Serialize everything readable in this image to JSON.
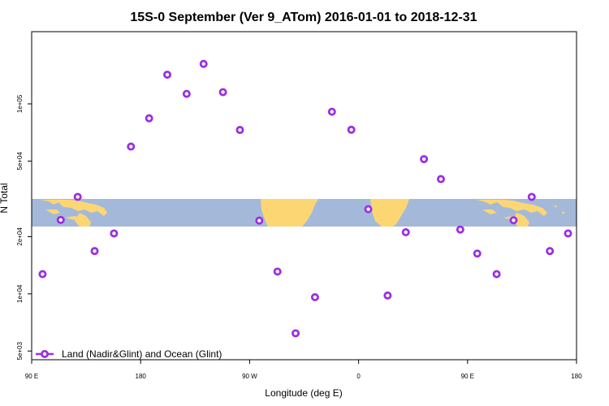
{
  "chart_data": {
    "type": "scatter",
    "title": "15S-0 September (Ver 9_ATom)   2016-01-01 to 2018-12-31",
    "xlabel": "Longitude (deg E)",
    "ylabel": "N Total",
    "x_ticks": [
      {
        "value": 90,
        "label": "90 E"
      },
      {
        "value": 180,
        "label": "180"
      },
      {
        "value": 270,
        "label": "90 W"
      },
      {
        "value": 360,
        "label": "0"
      },
      {
        "value": 450,
        "label": "90 E"
      },
      {
        "value": 540,
        "label": "180"
      }
    ],
    "xlim": [
      90,
      540
    ],
    "y_scale": "log",
    "ylim": [
      4500,
      240000
    ],
    "y_ticks": [
      {
        "value": 5000,
        "label": "5e+03"
      },
      {
        "value": 10000,
        "label": "1e+04"
      },
      {
        "value": 20000,
        "label": "2e+04"
      },
      {
        "value": 50000,
        "label": "5e+04"
      },
      {
        "value": 100000,
        "label": "1e+05"
      }
    ],
    "grid": false,
    "legend_position": "bottom-left",
    "series": [
      {
        "name": "Land (Nadir&Glint) and Ocean (Glint)",
        "color": "#9b30e0",
        "x": [
          99,
          114,
          128,
          142,
          158,
          172,
          187,
          202,
          218,
          232,
          248,
          262,
          278,
          293,
          308,
          324,
          338,
          354,
          368,
          384,
          399,
          414,
          428,
          444,
          458,
          474,
          488,
          503,
          518,
          533
        ],
        "y": [
          12700,
          24500,
          32400,
          16800,
          20800,
          59600,
          84000,
          142500,
          112900,
          162400,
          115300,
          72900,
          24300,
          13100,
          6200,
          9600,
          90900,
          73100,
          27900,
          9800,
          21100,
          51200,
          40200,
          21800,
          16300,
          12700,
          24400,
          32400,
          16800,
          20800
        ]
      }
    ]
  }
}
